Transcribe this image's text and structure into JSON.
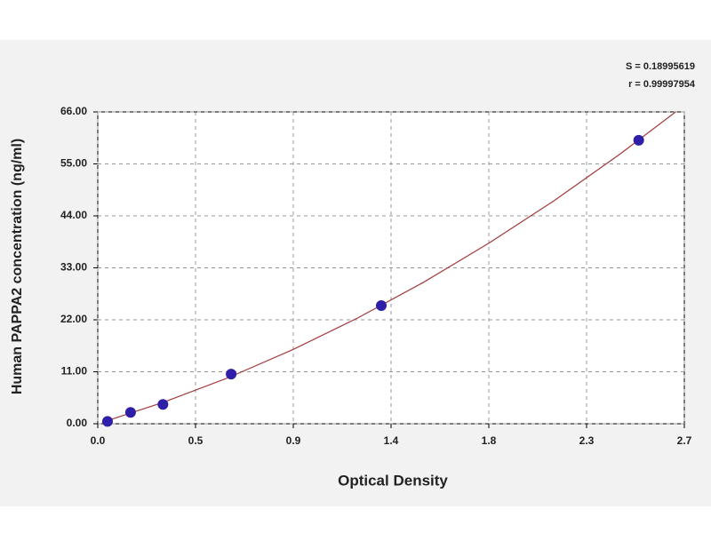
{
  "chart_data": {
    "type": "scatter",
    "xlabel": "Optical Density",
    "ylabel": "Human PAPPA2 concentration (ng/ml)",
    "annotations": [
      "S = 0.18995619",
      "r = 0.99997954"
    ],
    "xlim": [
      0,
      2.7
    ],
    "xticks": [
      {
        "value": 0,
        "label": "0.0"
      },
      {
        "value": 0.45,
        "label": "0.5"
      },
      {
        "value": 0.9,
        "label": "0.9"
      },
      {
        "value": 1.35,
        "label": "1.4"
      },
      {
        "value": 1.8,
        "label": "1.8"
      },
      {
        "value": 2.25,
        "label": "2.3"
      },
      {
        "value": 2.7,
        "label": "2.7"
      }
    ],
    "ylim": [
      0,
      66
    ],
    "yticks": [
      {
        "value": 0,
        "label": "0.00"
      },
      {
        "value": 11,
        "label": "11.00"
      },
      {
        "value": 22,
        "label": "22.00"
      },
      {
        "value": 33,
        "label": "33.00"
      },
      {
        "value": 44,
        "label": "44.00"
      },
      {
        "value": 55,
        "label": "55.00"
      },
      {
        "value": 66,
        "label": "66.00"
      }
    ],
    "grid": true,
    "points": {
      "color": "#2e1fa8",
      "x": [
        0.045,
        0.151,
        0.3,
        0.614,
        1.305,
        2.49
      ],
      "y": [
        0.5,
        2.4,
        4.1,
        10.5,
        25,
        60
      ]
    },
    "fit": {
      "color": "#a33a3a",
      "x": [
        0.02,
        0.3,
        0.6,
        0.9,
        1.2,
        1.5,
        1.8,
        2.1,
        2.4,
        2.66
      ],
      "y": [
        0.28,
        4.49,
        9.73,
        15.73,
        22.47,
        29.96,
        38.21,
        47.2,
        56.95,
        66.0
      ]
    }
  }
}
